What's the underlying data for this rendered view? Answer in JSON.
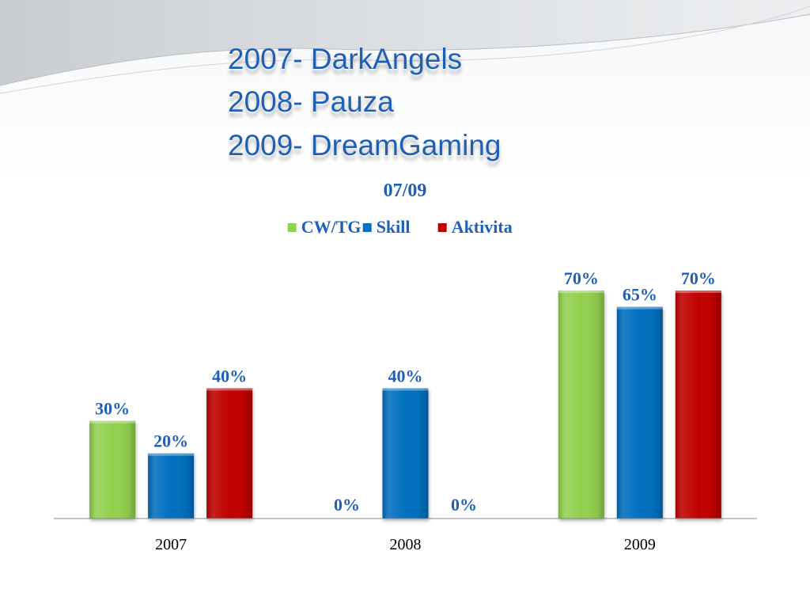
{
  "slide": {
    "headline_lines": [
      "2007- DarkAngels",
      "2008- Pauza",
      "2009- DreamGaming"
    ]
  },
  "colors": {
    "headline": "#1f5fb4",
    "label": "#1f5fb4",
    "axis": "#000000"
  },
  "chart_data": {
    "type": "bar",
    "title": "07/09",
    "categories": [
      "2007",
      "2008",
      "2009"
    ],
    "series": [
      {
        "name": "CW/TG",
        "values": [
          30,
          0,
          70
        ],
        "labels": [
          "30%",
          "0%",
          "70%"
        ],
        "color": "#92d050"
      },
      {
        "name": "Skill",
        "values": [
          20,
          40,
          65
        ],
        "labels": [
          "20%",
          "40%",
          "65%"
        ],
        "color": "#0070c0"
      },
      {
        "name": "Aktivita",
        "values": [
          40,
          0,
          70
        ],
        "labels": [
          "40%",
          "0%",
          "70%"
        ],
        "color": "#c00000"
      }
    ],
    "unit": "%",
    "ylim": [
      0,
      70
    ],
    "grid": false,
    "legend_position": "top"
  }
}
